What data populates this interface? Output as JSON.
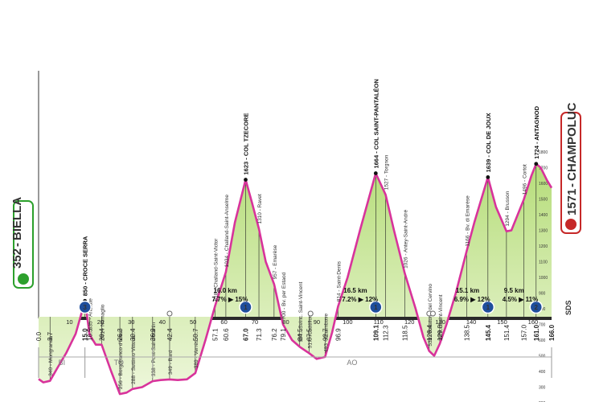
{
  "start": {
    "altitude": "352",
    "name": "BIELLA"
  },
  "finish": {
    "altitude": "1571",
    "name": "CHAMPOLUC"
  },
  "logo": "SDS",
  "chart_data": {
    "type": "area",
    "xlabel": "",
    "ylabel": "",
    "xlim": [
      0,
      166
    ],
    "ylim": [
      0,
      2000
    ],
    "grid": false,
    "elevation_profile": [
      [
        0,
        352
      ],
      [
        1.5,
        330
      ],
      [
        3.7,
        340
      ],
      [
        6,
        420
      ],
      [
        9,
        520
      ],
      [
        12,
        640
      ],
      [
        15,
        850
      ],
      [
        16.5,
        635
      ],
      [
        18.5,
        571
      ],
      [
        20.4,
        571
      ],
      [
        23.5,
        400
      ],
      [
        26.3,
        256
      ],
      [
        28.5,
        265
      ],
      [
        30.4,
        288
      ],
      [
        33.5,
        300
      ],
      [
        36.9,
        338
      ],
      [
        39.5,
        345
      ],
      [
        42.4,
        349
      ],
      [
        45,
        345
      ],
      [
        48,
        350
      ],
      [
        50.7,
        389
      ],
      [
        54,
        600
      ],
      [
        57.1,
        818
      ],
      [
        60.6,
        1034
      ],
      [
        63.5,
        1350
      ],
      [
        67.0,
        1623
      ],
      [
        69,
        1480
      ],
      [
        71.3,
        1310
      ],
      [
        73.5,
        1100
      ],
      [
        76.2,
        957
      ],
      [
        79.1,
        700
      ],
      [
        82,
        600
      ],
      [
        84.5,
        557
      ],
      [
        87.5,
        517
      ],
      [
        90,
        480
      ],
      [
        92.7,
        493
      ],
      [
        95,
        650
      ],
      [
        96.9,
        814
      ],
      [
        100,
        1000
      ],
      [
        104,
        1300
      ],
      [
        109.1,
        1664
      ],
      [
        112.3,
        1527
      ],
      [
        115,
        1300
      ],
      [
        118.5,
        1026
      ],
      [
        122,
        800
      ],
      [
        124.5,
        620
      ],
      [
        126.4,
        530
      ],
      [
        128,
        500
      ],
      [
        129.8,
        576
      ],
      [
        132,
        700
      ],
      [
        135,
        900
      ],
      [
        138.5,
        1166
      ],
      [
        141,
        1350
      ],
      [
        145.4,
        1639
      ],
      [
        148,
        1450
      ],
      [
        151.4,
        1294
      ],
      [
        153,
        1300
      ],
      [
        157.0,
        1496
      ],
      [
        159.5,
        1650
      ],
      [
        161.0,
        1724
      ],
      [
        162.5,
        1700
      ],
      [
        164.5,
        1620
      ],
      [
        166.0,
        1571
      ]
    ],
    "x_ticks": [
      "0.0",
      "3.7",
      "15.0",
      "16.5",
      "20.4",
      "26.3",
      "30.4",
      "36.9",
      "42.4",
      "50.7",
      "57.1",
      "60.6",
      "67.0",
      "71.3",
      "76.2",
      "79.1",
      "84.5",
      "87.5",
      "92.7",
      "96.9",
      "109.1",
      "112.3",
      "118.5",
      "126.4",
      "129.8",
      "138.5",
      "145.4",
      "151.4",
      "157.0",
      "161.0",
      "166.0"
    ],
    "x_ticks_bold": [
      "15.0",
      "67.0",
      "109.1",
      "145.4",
      "161.0",
      "166.0"
    ],
    "round_ticks": [
      "10",
      "20",
      "30",
      "40",
      "50",
      "60",
      "70",
      "80",
      "90",
      "100",
      "110",
      "120",
      "130",
      "140",
      "150",
      "160"
    ],
    "point_labels": [
      {
        "km": 3.7,
        "alt": 340,
        "text": "340 - Mongrando"
      },
      {
        "km": 15.0,
        "alt": 850,
        "text": "850 - CROCE SERRA",
        "bold": true
      },
      {
        "km": 16.5,
        "alt": 635,
        "text": "635 - Andrate"
      },
      {
        "km": 20.4,
        "alt": 571,
        "text": "571 - Nomaglio"
      },
      {
        "km": 26.3,
        "alt": 256,
        "text": "256 - Borgofranco d'Ivrea"
      },
      {
        "km": 30.4,
        "alt": 288,
        "text": "288 - Settimo Vittone"
      },
      {
        "km": 36.9,
        "alt": 338,
        "text": "338 - Pont-Saint-Martin"
      },
      {
        "km": 42.4,
        "alt": 349,
        "text": "349 - Bard"
      },
      {
        "km": 50.7,
        "alt": 389,
        "text": "389 - Verrès"
      },
      {
        "km": 57.1,
        "alt": 818,
        "text": "818 - Challand-Saint-Victor"
      },
      {
        "km": 60.6,
        "alt": 1034,
        "text": "1034 - Challand-Saint-Anselme"
      },
      {
        "km": 67.0,
        "alt": 1623,
        "text": "1623 - COL TZECORE",
        "bold": true
      },
      {
        "km": 71.3,
        "alt": 1310,
        "text": "1310 - Ravet"
      },
      {
        "km": 76.2,
        "alt": 957,
        "text": "957 - Emarèse"
      },
      {
        "km": 79.1,
        "alt": 700,
        "text": "700 - Bv. per Estaod"
      },
      {
        "km": 84.5,
        "alt": 557,
        "text": "557 - Svinc. Saint-Vincent"
      },
      {
        "km": 87.5,
        "alt": 517,
        "text": "517 - Châtillon"
      },
      {
        "km": 92.7,
        "alt": 493,
        "text": "493 - Chambave"
      },
      {
        "km": 96.9,
        "alt": 814,
        "text": "814 - Saint-Denis"
      },
      {
        "km": 109.1,
        "alt": 1664,
        "text": "1664 - COL SAINT-PANTALÉON",
        "bold": true
      },
      {
        "km": 112.3,
        "alt": 1527,
        "text": "1527 - Torgnon"
      },
      {
        "km": 118.5,
        "alt": 1026,
        "text": "1026 - Antey-Saint-André"
      },
      {
        "km": 126.4,
        "alt": 530,
        "text": "530 - Rotatoria del Cervino"
      },
      {
        "km": 129.8,
        "alt": 576,
        "text": "576 - Saint-Vincent"
      },
      {
        "km": 138.5,
        "alt": 1166,
        "text": "1166 - Bv. di Emarèse"
      },
      {
        "km": 145.4,
        "alt": 1639,
        "text": "1639 - COL DE JOUX",
        "bold": true
      },
      {
        "km": 151.4,
        "alt": 1294,
        "text": "1294 - Brusson"
      },
      {
        "km": 157.0,
        "alt": 1496,
        "text": "1496 - Cortot"
      },
      {
        "km": 161.0,
        "alt": 1724,
        "text": "1724 - ANTAGNOD",
        "bold": true
      }
    ],
    "climbs": [
      {
        "km": 15.0,
        "category": "3"
      },
      {
        "km": 67.0,
        "category": "1",
        "length": "16.0 km",
        "avg": "7.7%",
        "max": "15%"
      },
      {
        "km": 109.1,
        "category": "1",
        "length": "16.5 km",
        "avg": "7.2%",
        "max": "12%"
      },
      {
        "km": 145.4,
        "category": "1",
        "length": "15.1 km",
        "avg": "6.9%",
        "max": "12%"
      },
      {
        "km": 161.0,
        "category": "2",
        "length": "9.5 km",
        "avg": "4.5%",
        "max": "11%"
      }
    ],
    "km_markers": [
      42.4,
      88.0,
      126.4,
      127.6
    ],
    "regions": [
      {
        "from": 0,
        "to": 15.0,
        "code": "BI"
      },
      {
        "from": 15.0,
        "to": 36.9,
        "code": "TO"
      },
      {
        "from": 36.9,
        "to": 166.0,
        "code": "AO"
      }
    ],
    "finish_scale": [
      "1800",
      "1700",
      "1600",
      "1500",
      "1400",
      "1300",
      "1200",
      "1100",
      "1000",
      "900",
      "800",
      "700",
      "600",
      "500",
      "400",
      "300",
      "200"
    ]
  }
}
